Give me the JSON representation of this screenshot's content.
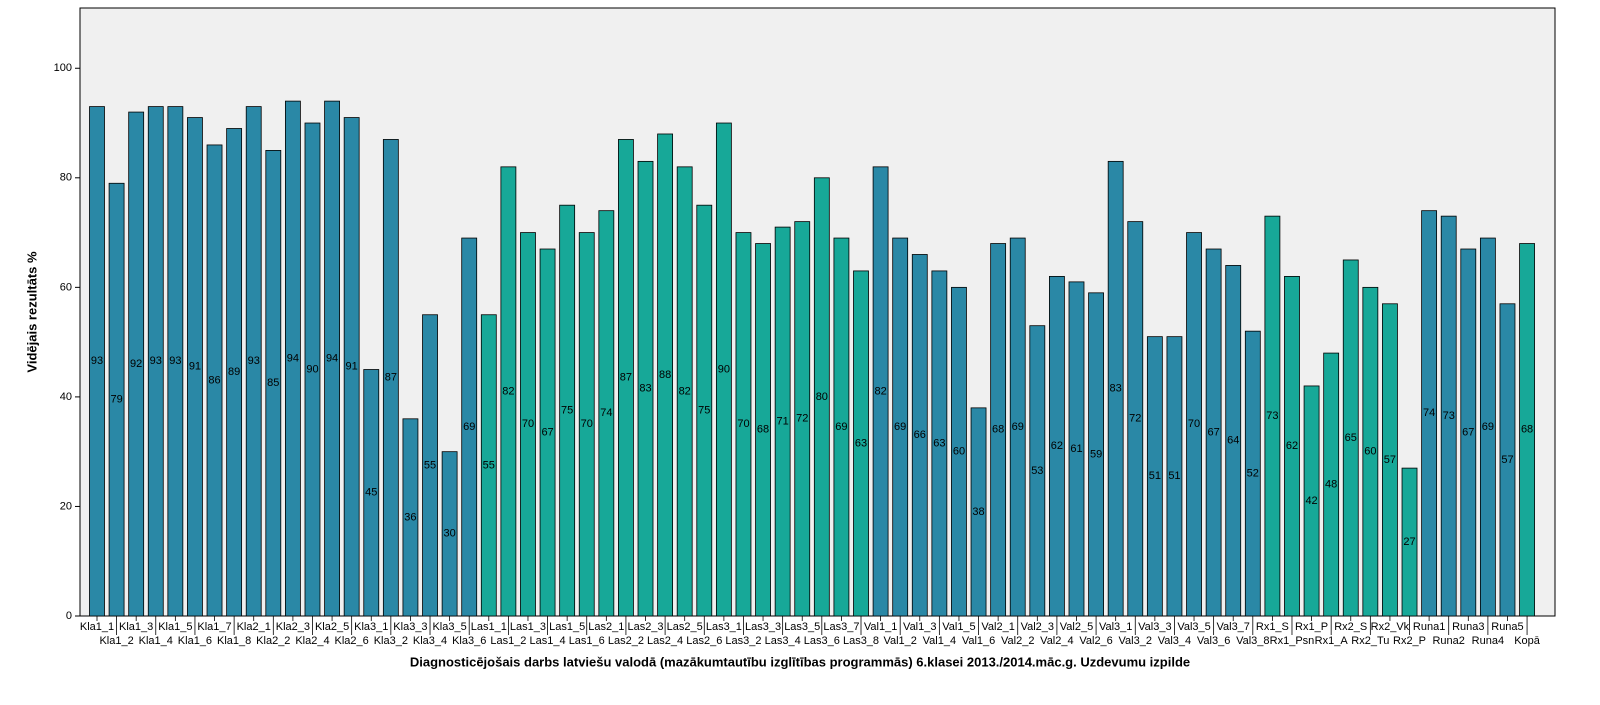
{
  "chart_data": {
    "type": "bar",
    "x_label": "Diagnosticējošais darbs latviešu valodā (mazākumtautību izglītības programmās) 6.klasei 2013./2014.māc.g. Uzdevumu izpilde",
    "y_label": "Vidējais rezultāts %",
    "categories": [
      "Kla1_1",
      "Kla1_2",
      "Kla1_3",
      "Kla1_4",
      "Kla1_5",
      "Kla1_6",
      "Kla1_7",
      "Kla1_8",
      "Kla2_1",
      "Kla2_2",
      "Kla2_3",
      "Kla2_4",
      "Kla2_5",
      "Kla2_6",
      "Kla3_1",
      "Kla3_2",
      "Kla3_3",
      "Kla3_4",
      "Kla3_5",
      "Kla3_6",
      "Las1_1",
      "Las1_2",
      "Las1_3",
      "Las1_4",
      "Las1_5",
      "Las1_6",
      "Las2_1",
      "Las2_2",
      "Las2_3",
      "Las2_4",
      "Las2_5",
      "Las2_6",
      "Las3_1",
      "Las3_2",
      "Las3_3",
      "Las3_4",
      "Las3_5",
      "Las3_6",
      "Las3_7",
      "Las3_8",
      "Val1_1",
      "Val1_2",
      "Val1_3",
      "Val1_4",
      "Val1_5",
      "Val1_6",
      "Val2_1",
      "Val2_2",
      "Val2_3",
      "Val2_4",
      "Val2_5",
      "Val2_6",
      "Val3_1",
      "Val3_2",
      "Val3_3",
      "Val3_4",
      "Val3_5",
      "Val3_6",
      "Val3_7",
      "Val3_8",
      "Rx1_S",
      "Rx1_Psn",
      "Rx1_P",
      "Rx1_A",
      "Rx2_S",
      "Rx2_Tu",
      "Rx2_Vk",
      "Rx2_P",
      "Runa1",
      "Runa2",
      "Runa3",
      "Runa4",
      "Runa5",
      "Kopā"
    ],
    "values": [
      93,
      79,
      92,
      93,
      93,
      91,
      86,
      89,
      93,
      85,
      94,
      90,
      94,
      91,
      45,
      87,
      36,
      55,
      30,
      69,
      55,
      82,
      70,
      67,
      75,
      70,
      74,
      87,
      83,
      88,
      82,
      75,
      90,
      70,
      68,
      71,
      72,
      80,
      69,
      63,
      82,
      69,
      66,
      63,
      60,
      38,
      68,
      69,
      53,
      62,
      61,
      59,
      83,
      72,
      51,
      51,
      70,
      67,
      64,
      52,
      73,
      62,
      42,
      48,
      65,
      60,
      57,
      27,
      74,
      73,
      67,
      69,
      57,
      68
    ],
    "colors": [
      "#2a88a6",
      "#2a88a6",
      "#2a88a6",
      "#2a88a6",
      "#2a88a6",
      "#2a88a6",
      "#2a88a6",
      "#2a88a6",
      "#2a88a6",
      "#2a88a6",
      "#2a88a6",
      "#2a88a6",
      "#2a88a6",
      "#2a88a6",
      "#2a88a6",
      "#2a88a6",
      "#2a88a6",
      "#2a88a6",
      "#2a88a6",
      "#2a88a6",
      "#17a898",
      "#17a898",
      "#17a898",
      "#17a898",
      "#17a898",
      "#17a898",
      "#17a898",
      "#17a898",
      "#17a898",
      "#17a898",
      "#17a898",
      "#17a898",
      "#17a898",
      "#17a898",
      "#17a898",
      "#17a898",
      "#17a898",
      "#17a898",
      "#17a898",
      "#17a898",
      "#2a88a6",
      "#2a88a6",
      "#2a88a6",
      "#2a88a6",
      "#2a88a6",
      "#2a88a6",
      "#2a88a6",
      "#2a88a6",
      "#2a88a6",
      "#2a88a6",
      "#2a88a6",
      "#2a88a6",
      "#2a88a6",
      "#2a88a6",
      "#2a88a6",
      "#2a88a6",
      "#2a88a6",
      "#2a88a6",
      "#2a88a6",
      "#2a88a6",
      "#17a898",
      "#17a898",
      "#17a898",
      "#17a898",
      "#17a898",
      "#17a898",
      "#17a898",
      "#17a898",
      "#2a88a6",
      "#2a88a6",
      "#2a88a6",
      "#2a88a6",
      "#2a88a6",
      "#17a898"
    ],
    "ylim": [
      0,
      111
    ],
    "yticks": [
      0,
      20,
      40,
      60,
      80,
      100
    ]
  }
}
